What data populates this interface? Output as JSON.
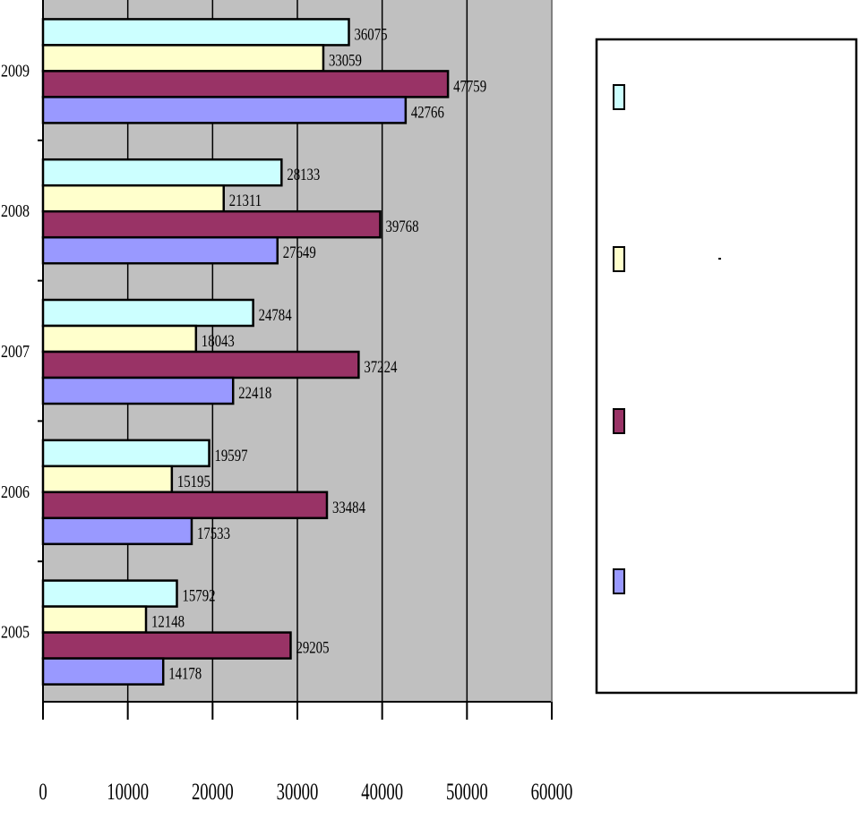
{
  "chart_data": {
    "type": "bar",
    "orientation": "horizontal",
    "title": "",
    "xlabel": "",
    "ylabel": "",
    "categories": [
      "2005",
      "2006",
      "2007",
      "2008",
      "2009"
    ],
    "series": [
      {
        "name": "",
        "color": "#9999ff",
        "values": [
          14178,
          17533,
          22418,
          27649,
          42766
        ]
      },
      {
        "name": "",
        "color": "#993366",
        "values": [
          29205,
          33484,
          37224,
          39768,
          47759
        ]
      },
      {
        "name": "",
        "color": "#ffffcc",
        "values": [
          12148,
          15195,
          18043,
          21311,
          33059
        ]
      },
      {
        "name": "",
        "color": "#ccffff",
        "values": [
          15792,
          19597,
          24784,
          28133,
          36075
        ]
      }
    ],
    "xlim": [
      0,
      60000
    ],
    "xticks": [
      0,
      10000,
      20000,
      30000,
      40000,
      50000,
      60000
    ],
    "xtick_labels": [
      "0",
      "10000",
      "20000",
      "30000",
      "40000",
      "50000",
      "60000"
    ],
    "grid": true,
    "plot_background": "#c0c0c0",
    "legend_position": "right"
  }
}
